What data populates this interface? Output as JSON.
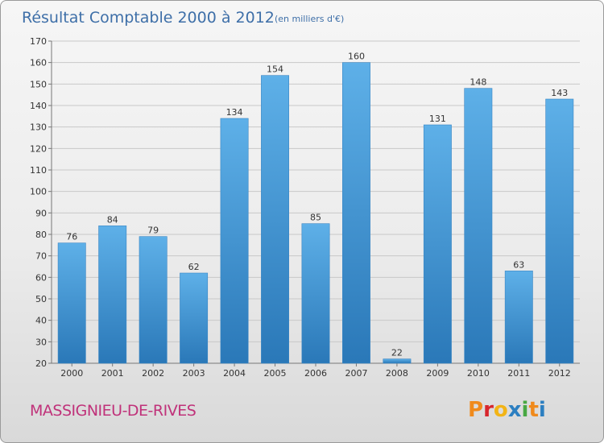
{
  "chart_data": {
    "type": "bar",
    "title": "Résultat Comptable 2000 à 2012",
    "subtitle": "(en milliers d'€)",
    "categories": [
      "2000",
      "2001",
      "2002",
      "2003",
      "2004",
      "2005",
      "2006",
      "2007",
      "2008",
      "2009",
      "2010",
      "2011",
      "2012"
    ],
    "values": [
      76,
      84,
      79,
      62,
      134,
      154,
      85,
      160,
      22,
      131,
      148,
      63,
      143
    ],
    "ylim": [
      20,
      170
    ],
    "yticks": [
      20,
      30,
      40,
      50,
      60,
      70,
      80,
      90,
      100,
      110,
      120,
      130,
      140,
      150,
      160,
      170
    ],
    "grid": true,
    "bar_color": "#4d9ddb",
    "xlabel": "",
    "ylabel": ""
  },
  "commune": "MASSIGNIEU-DE-RIVES",
  "logo": {
    "text": "Proxiti",
    "letters": [
      "P",
      "r",
      "o",
      "x",
      "i",
      "t",
      "i"
    ],
    "colors": [
      "#f08a1c",
      "#d7262d",
      "#f2b416",
      "#2c7fc1",
      "#48a843",
      "#f08a1c",
      "#2c7fc1"
    ]
  }
}
